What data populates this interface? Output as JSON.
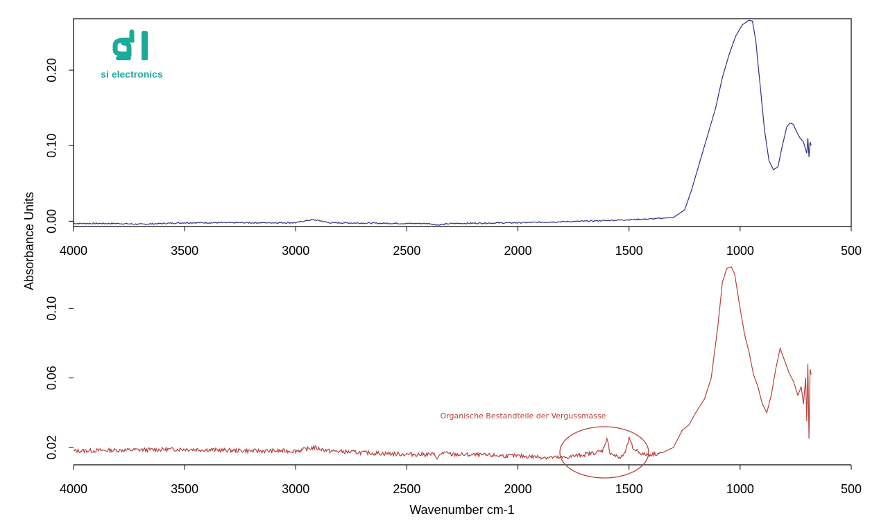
{
  "logo": {
    "text": "si electronics",
    "color": "#1aab9b"
  },
  "ylabel": "Absorbance Units",
  "xlabel": "Wavenumber cm-1",
  "annotation": {
    "text": "Organische Bestandteile der Vergussmasse",
    "color": "#b5403c"
  },
  "chart_data": [
    {
      "type": "line",
      "color": "#2d2f86",
      "xlim": [
        4000,
        500
      ],
      "ylim": [
        -0.007,
        0.268
      ],
      "xticks": [
        4000,
        3500,
        3000,
        2500,
        2000,
        1500,
        1000,
        500
      ],
      "yticks": [
        0.0,
        0.1,
        0.2
      ],
      "ytick_labels": [
        "0.00",
        "0.10",
        "0.20"
      ],
      "show_box": true,
      "noise": 0.0008,
      "points": [
        [
          4000,
          -0.003
        ],
        [
          3800,
          -0.003
        ],
        [
          3700,
          -0.004
        ],
        [
          3500,
          -0.002
        ],
        [
          3000,
          -0.002
        ],
        [
          2950,
          0.001
        ],
        [
          2920,
          0.002
        ],
        [
          2880,
          0.0
        ],
        [
          2850,
          -0.002
        ],
        [
          2500,
          -0.003
        ],
        [
          2400,
          -0.003
        ],
        [
          2360,
          -0.005
        ],
        [
          2300,
          -0.003
        ],
        [
          2000,
          -0.002
        ],
        [
          1700,
          0.0
        ],
        [
          1500,
          0.002
        ],
        [
          1400,
          0.003
        ],
        [
          1300,
          0.005
        ],
        [
          1250,
          0.015
        ],
        [
          1220,
          0.04
        ],
        [
          1180,
          0.08
        ],
        [
          1150,
          0.11
        ],
        [
          1110,
          0.15
        ],
        [
          1080,
          0.19
        ],
        [
          1050,
          0.22
        ],
        [
          1020,
          0.245
        ],
        [
          990,
          0.26
        ],
        [
          960,
          0.266
        ],
        [
          945,
          0.265
        ],
        [
          930,
          0.24
        ],
        [
          910,
          0.18
        ],
        [
          890,
          0.12
        ],
        [
          870,
          0.08
        ],
        [
          850,
          0.068
        ],
        [
          830,
          0.072
        ],
        [
          810,
          0.1
        ],
        [
          790,
          0.125
        ],
        [
          775,
          0.13
        ],
        [
          760,
          0.128
        ],
        [
          745,
          0.118
        ],
        [
          730,
          0.11
        ],
        [
          715,
          0.105
        ],
        [
          700,
          0.09
        ],
        [
          695,
          0.11
        ],
        [
          690,
          0.085
        ],
        [
          685,
          0.105
        ],
        [
          680,
          0.1
        ]
      ]
    },
    {
      "type": "line",
      "color": "#b5403c",
      "xlim": [
        4000,
        500
      ],
      "ylim": [
        0.01,
        0.134
      ],
      "xticks": [
        4000,
        3500,
        3000,
        2500,
        2000,
        1500,
        1000,
        500
      ],
      "xtick_labels": [
        "4000",
        "3500",
        "3000",
        "2500",
        "2000",
        "1500",
        "1000",
        "500"
      ],
      "yticks": [
        0.02,
        0.06,
        0.1
      ],
      "ytick_labels": [
        "0.02",
        "0.06",
        "0.10"
      ],
      "show_box": false,
      "noise": 0.0012,
      "points": [
        [
          4000,
          0.018
        ],
        [
          3500,
          0.019
        ],
        [
          3200,
          0.018
        ],
        [
          3000,
          0.018
        ],
        [
          2950,
          0.019
        ],
        [
          2920,
          0.02
        ],
        [
          2850,
          0.018
        ],
        [
          2700,
          0.017
        ],
        [
          2500,
          0.016
        ],
        [
          2380,
          0.016
        ],
        [
          2360,
          0.014
        ],
        [
          2340,
          0.017
        ],
        [
          2300,
          0.016
        ],
        [
          2000,
          0.015
        ],
        [
          1800,
          0.014
        ],
        [
          1700,
          0.016
        ],
        [
          1650,
          0.017
        ],
        [
          1620,
          0.018
        ],
        [
          1600,
          0.025
        ],
        [
          1585,
          0.017
        ],
        [
          1560,
          0.015
        ],
        [
          1540,
          0.014
        ],
        [
          1520,
          0.016
        ],
        [
          1500,
          0.025
        ],
        [
          1480,
          0.019
        ],
        [
          1460,
          0.018
        ],
        [
          1440,
          0.016
        ],
        [
          1400,
          0.016
        ],
        [
          1350,
          0.017
        ],
        [
          1300,
          0.02
        ],
        [
          1260,
          0.03
        ],
        [
          1230,
          0.033
        ],
        [
          1200,
          0.04
        ],
        [
          1160,
          0.048
        ],
        [
          1130,
          0.06
        ],
        [
          1100,
          0.09
        ],
        [
          1080,
          0.115
        ],
        [
          1060,
          0.123
        ],
        [
          1040,
          0.124
        ],
        [
          1025,
          0.12
        ],
        [
          1000,
          0.1
        ],
        [
          980,
          0.085
        ],
        [
          960,
          0.075
        ],
        [
          940,
          0.062
        ],
        [
          920,
          0.055
        ],
        [
          900,
          0.045
        ],
        [
          880,
          0.04
        ],
        [
          860,
          0.05
        ],
        [
          840,
          0.065
        ],
        [
          820,
          0.077
        ],
        [
          800,
          0.07
        ],
        [
          780,
          0.063
        ],
        [
          760,
          0.058
        ],
        [
          740,
          0.05
        ],
        [
          725,
          0.055
        ],
        [
          715,
          0.045
        ],
        [
          705,
          0.06
        ],
        [
          700,
          0.035
        ],
        [
          695,
          0.068
        ],
        [
          690,
          0.025
        ],
        [
          685,
          0.065
        ],
        [
          680,
          0.062
        ]
      ]
    }
  ]
}
